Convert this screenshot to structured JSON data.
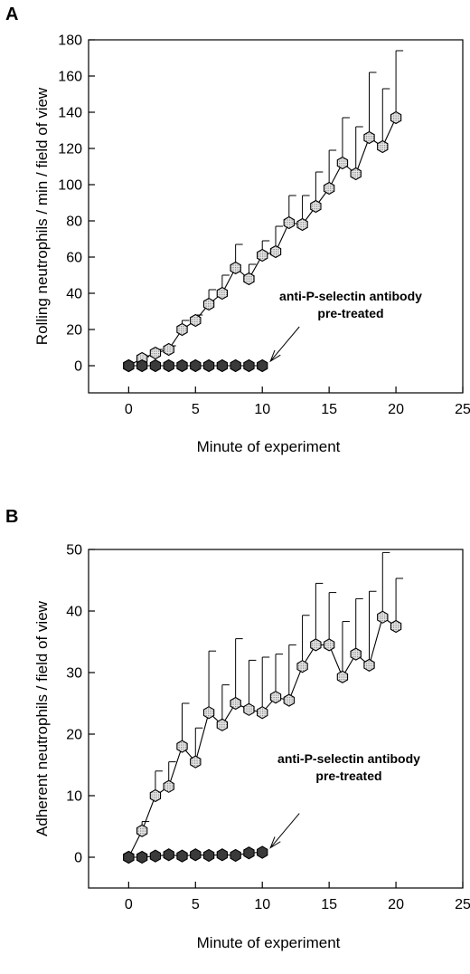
{
  "chart_data": [
    {
      "type": "scatter",
      "panel_label": "A",
      "xlabel": "Minute of experiment",
      "ylabel": "Rolling neutrophils / min / field of view",
      "xlim": [
        -3,
        25
      ],
      "ylim": [
        -15,
        180
      ],
      "xticks": [
        0,
        5,
        10,
        15,
        20,
        25
      ],
      "yticks": [
        0,
        20,
        40,
        60,
        80,
        100,
        120,
        140,
        160,
        180
      ],
      "annotation": {
        "lines": [
          "anti-P-selectin antibody",
          "pre-treated"
        ],
        "points_to": [
          10,
          0
        ]
      },
      "series": [
        {
          "marker": "hexagon",
          "fill": "#c9c9c9",
          "hatched": true,
          "connected": true,
          "x": [
            0,
            1,
            2,
            3,
            4,
            5,
            6,
            7,
            8,
            9,
            10,
            11,
            12,
            13,
            14,
            15,
            16,
            17,
            18,
            19,
            20
          ],
          "y": [
            0,
            4,
            7,
            9,
            20,
            25,
            34,
            40,
            54,
            48,
            61,
            63,
            79,
            78,
            88,
            98,
            112,
            106,
            126,
            121,
            137
          ],
          "error_upper": [
            0,
            1,
            2,
            2,
            5,
            3,
            8,
            10,
            13,
            8,
            8,
            14,
            15,
            16,
            19,
            21,
            25,
            26,
            36,
            32,
            37
          ]
        },
        {
          "marker": "hexagon",
          "fill": "#3a3a3a",
          "hatched": false,
          "connected": true,
          "x": [
            0,
            1,
            2,
            3,
            4,
            5,
            6,
            7,
            8,
            9,
            10
          ],
          "y": [
            0,
            0,
            0,
            0,
            0,
            0,
            0,
            0,
            0,
            0,
            0
          ]
        }
      ]
    },
    {
      "type": "scatter",
      "panel_label": "B",
      "xlabel": "Minute of experiment",
      "ylabel": "Adherent neutrophils / field of view",
      "xlim": [
        -3,
        25
      ],
      "ylim": [
        -5,
        50
      ],
      "xticks": [
        0,
        5,
        10,
        15,
        20,
        25
      ],
      "yticks": [
        0,
        10,
        20,
        30,
        40,
        50
      ],
      "annotation": {
        "lines": [
          "anti-P-selectin antibody",
          "pre-treated"
        ],
        "points_to": [
          10,
          0.8
        ]
      },
      "series": [
        {
          "marker": "hexagon",
          "fill": "#c9c9c9",
          "hatched": true,
          "connected": true,
          "x": [
            0,
            1,
            2,
            3,
            4,
            5,
            6,
            7,
            8,
            9,
            10,
            11,
            12,
            13,
            14,
            15,
            16,
            17,
            18,
            19,
            20
          ],
          "y": [
            0,
            4.3,
            10,
            11.5,
            18,
            15.5,
            23.5,
            21.5,
            25,
            24,
            23.5,
            26,
            25.5,
            31,
            34.5,
            34.5,
            29.3,
            33,
            31.2,
            39,
            37.5
          ],
          "error_upper": [
            0,
            1.5,
            4,
            4,
            7,
            5.5,
            10,
            6.5,
            10.5,
            8,
            9,
            7,
            9,
            8.3,
            10,
            8.5,
            9,
            9,
            12,
            10.5,
            7.8
          ]
        },
        {
          "marker": "hexagon",
          "fill": "#3a3a3a",
          "hatched": false,
          "connected": true,
          "x": [
            0,
            1,
            2,
            3,
            4,
            5,
            6,
            7,
            8,
            9,
            10
          ],
          "y": [
            0,
            0,
            0.2,
            0.4,
            0.2,
            0.4,
            0.3,
            0.4,
            0.3,
            0.7,
            0.8
          ]
        }
      ]
    }
  ]
}
